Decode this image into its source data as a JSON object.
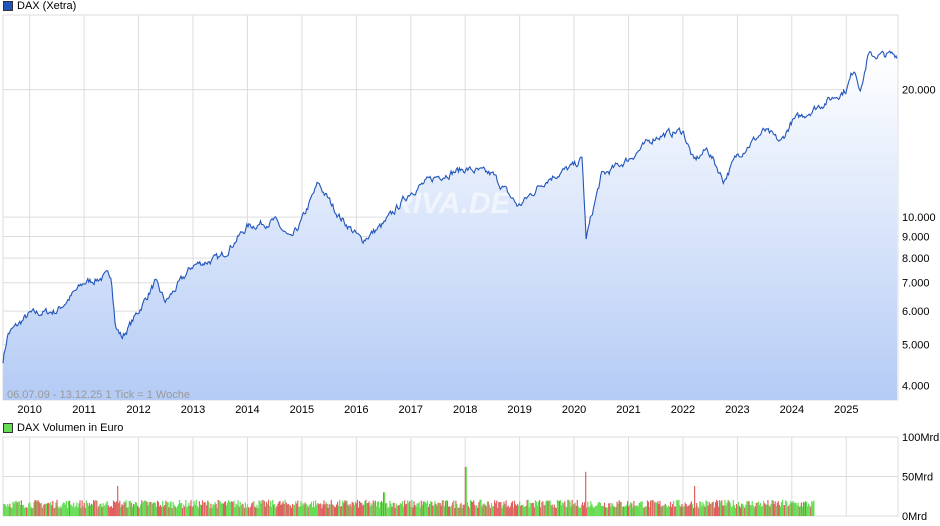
{
  "chart_data": [
    {
      "type": "area",
      "title": "DAX (Xetra)",
      "legend": "DAX (Xetra)",
      "yscale": "log",
      "ylim": [
        3700,
        30000
      ],
      "yticks": [
        4000,
        5000,
        6000,
        7000,
        8000,
        9000,
        10000,
        20000
      ],
      "ytick_labels": [
        "4.000",
        "5.000",
        "6.000",
        "7.000",
        "8.000",
        "9.000",
        "10.000",
        "20.000"
      ],
      "xlim": [
        2009.51,
        2025.95
      ],
      "xticks": [
        2010,
        2011,
        2012,
        2013,
        2014,
        2015,
        2016,
        2017,
        2018,
        2019,
        2020,
        2021,
        2022,
        2023,
        2024,
        2025
      ],
      "xtick_labels": [
        "2010",
        "2011",
        "2012",
        "2013",
        "2014",
        "2015",
        "2016",
        "2017",
        "2018",
        "2019",
        "2020",
        "2021",
        "2022",
        "2023",
        "2024",
        "2025"
      ],
      "info": "06.07.09 - 13.12.25   1 Tick = 1 Woche",
      "watermark": "ARIVA.DE",
      "series": [
        {
          "name": "DAX",
          "x": [
            2009.51,
            2009.6,
            2010.0,
            2010.5,
            2011.0,
            2011.5,
            2011.58,
            2011.7,
            2012.0,
            2012.3,
            2012.5,
            2013.0,
            2013.5,
            2014.0,
            2014.5,
            2014.8,
            2015.0,
            2015.3,
            2015.7,
            2016.1,
            2016.5,
            2017.0,
            2017.5,
            2018.0,
            2018.5,
            2018.98,
            2019.5,
            2020.0,
            2020.15,
            2020.22,
            2020.5,
            2021.0,
            2021.5,
            2022.0,
            2022.2,
            2022.45,
            2022.75,
            2023.0,
            2023.5,
            2023.8,
            2024.0,
            2024.5,
            2025.0,
            2025.15,
            2025.27,
            2025.4,
            2025.95
          ],
          "y": [
            4600,
            5300,
            5900,
            6000,
            7000,
            7300,
            5500,
            5200,
            6000,
            7000,
            6300,
            7700,
            8000,
            9500,
            9800,
            8800,
            9800,
            12000,
            10000,
            8800,
            9600,
            11500,
            12500,
            13000,
            12600,
            10600,
            12300,
            13200,
            13700,
            8900,
            12500,
            13700,
            15500,
            16000,
            13500,
            14500,
            12200,
            14000,
            16000,
            15000,
            16800,
            18300,
            20000,
            22500,
            20000,
            24000,
            24200
          ]
        }
      ],
      "colors": {
        "line": "#2255bb",
        "fill_top": "#ffffff",
        "fill_bottom": "#b4cbf5"
      }
    },
    {
      "type": "bar",
      "title": "DAX Volumen in Euro",
      "legend": "DAX Volumen in Euro",
      "ylim": [
        0,
        100
      ],
      "yticks": [
        0,
        50,
        100
      ],
      "ytick_labels": [
        "0Mrd",
        "50Mrd",
        "100Mrd"
      ],
      "typical_weekly_volume_mrd": 18,
      "spikes": [
        {
          "x": 2011.6,
          "y": 38
        },
        {
          "x": 2016.5,
          "y": 30
        },
        {
          "x": 2018.0,
          "y": 62
        },
        {
          "x": 2020.2,
          "y": 56
        },
        {
          "x": 2022.2,
          "y": 38
        }
      ],
      "xlim_data_end": 2024.4,
      "colors": {
        "up": "#66dd55",
        "down": "#e06060"
      }
    }
  ]
}
